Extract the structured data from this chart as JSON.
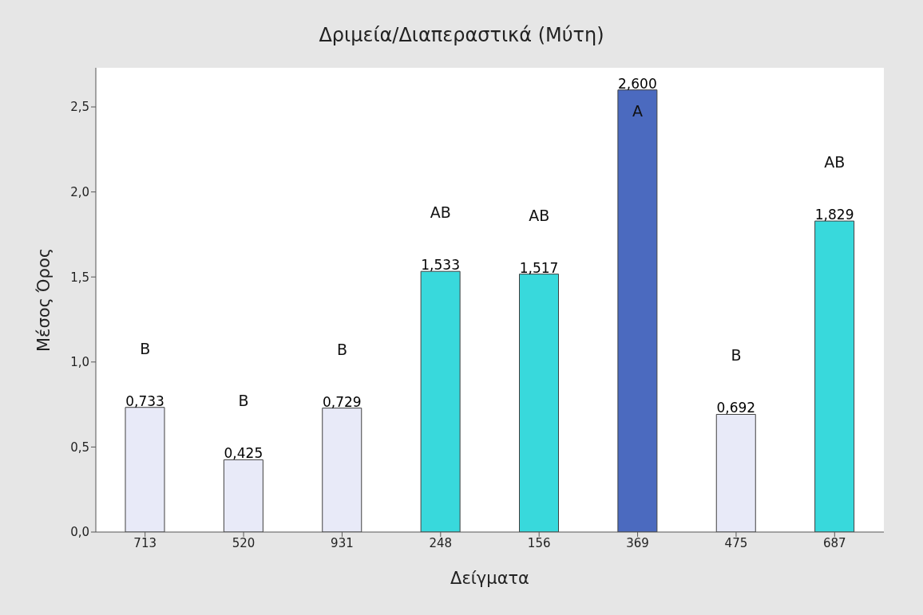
{
  "chart_data": {
    "type": "bar",
    "title": "Δριμεία/Διαπεραστικά (Μύτη)",
    "xlabel": "Δείγματα",
    "ylabel": "Μέσος Όρος",
    "categories": [
      "713",
      "520",
      "931",
      "248",
      "156",
      "369",
      "475",
      "687"
    ],
    "values": [
      0.733,
      0.425,
      0.729,
      1.533,
      1.517,
      2.6,
      0.692,
      1.829
    ],
    "colors": [
      "#e8eaf8",
      "#e8eaf8",
      "#e8eaf8",
      "#38d9dc",
      "#38d9dc",
      "#4b6abf",
      "#e8eaf8",
      "#38d9dc"
    ],
    "value_labels": [
      "0,733",
      "0,425",
      "0,729",
      "1,533",
      "1,517",
      "2,600",
      "0,692",
      "1,829"
    ],
    "ylim": [
      0,
      2.73
    ],
    "yticks": [
      {
        "value": 0,
        "label": "0,0"
      },
      {
        "value": 0.5,
        "label": "0,5"
      },
      {
        "value": 1,
        "label": "1,0"
      },
      {
        "value": 1.5,
        "label": "1,5"
      },
      {
        "value": 2,
        "label": "2,0"
      },
      {
        "value": 2.5,
        "label": "2,5"
      }
    ],
    "annotations": [
      "B",
      "B",
      "B",
      "AB",
      "AB",
      "A",
      "B",
      "AB"
    ],
    "grid": false
  }
}
